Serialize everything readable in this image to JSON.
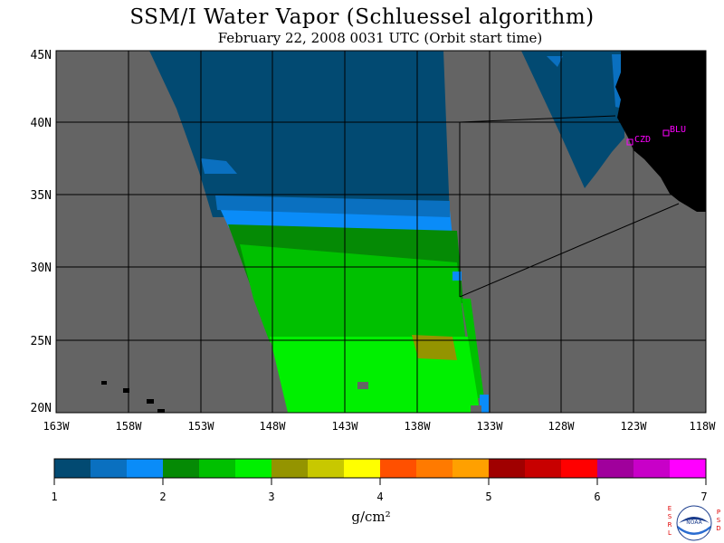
{
  "header": {
    "title": "SSM/I Water Vapor (Schluessel algorithm)",
    "subtitle": "February 22, 2008  0031 UTC  (Orbit start time)"
  },
  "map": {
    "lon_range": [
      -163,
      -118
    ],
    "lat_range": [
      20,
      45
    ],
    "lat_labels": [
      "45N",
      "40N",
      "35N",
      "30N",
      "25N",
      "20N"
    ],
    "lon_labels": [
      "163W",
      "158W",
      "153W",
      "148W",
      "143W",
      "138W",
      "133W",
      "128W",
      "123W",
      "118W"
    ],
    "stations": [
      {
        "name": "CZD",
        "lon": -123.3,
        "lat": 38.6
      },
      {
        "name": "BLU",
        "lon": -120.7,
        "lat": 39.3
      }
    ],
    "colors": {
      "no_data": "#646464",
      "land": "#000000",
      "grid": "#000000",
      "station": "#ff00ff"
    }
  },
  "colorbar": {
    "ticks": [
      "1",
      "2",
      "3",
      "4",
      "5",
      "6",
      "7"
    ],
    "unit": "g/cm²",
    "colors": [
      "#024a72",
      "#0a70c0",
      "#0a8cf8",
      "#058a05",
      "#00c000",
      "#00f000",
      "#949400",
      "#c8c800",
      "#ffff00",
      "#ff5000",
      "#ff7a00",
      "#ffa000",
      "#a00000",
      "#c80000",
      "#ff0000",
      "#a0009c",
      "#c800c8",
      "#ff00ff"
    ]
  },
  "logo": {
    "left_letters": [
      "E",
      "S",
      "R",
      "L"
    ],
    "right_letters": [
      "P",
      "S",
      "D"
    ],
    "center_text": "NOAA"
  }
}
